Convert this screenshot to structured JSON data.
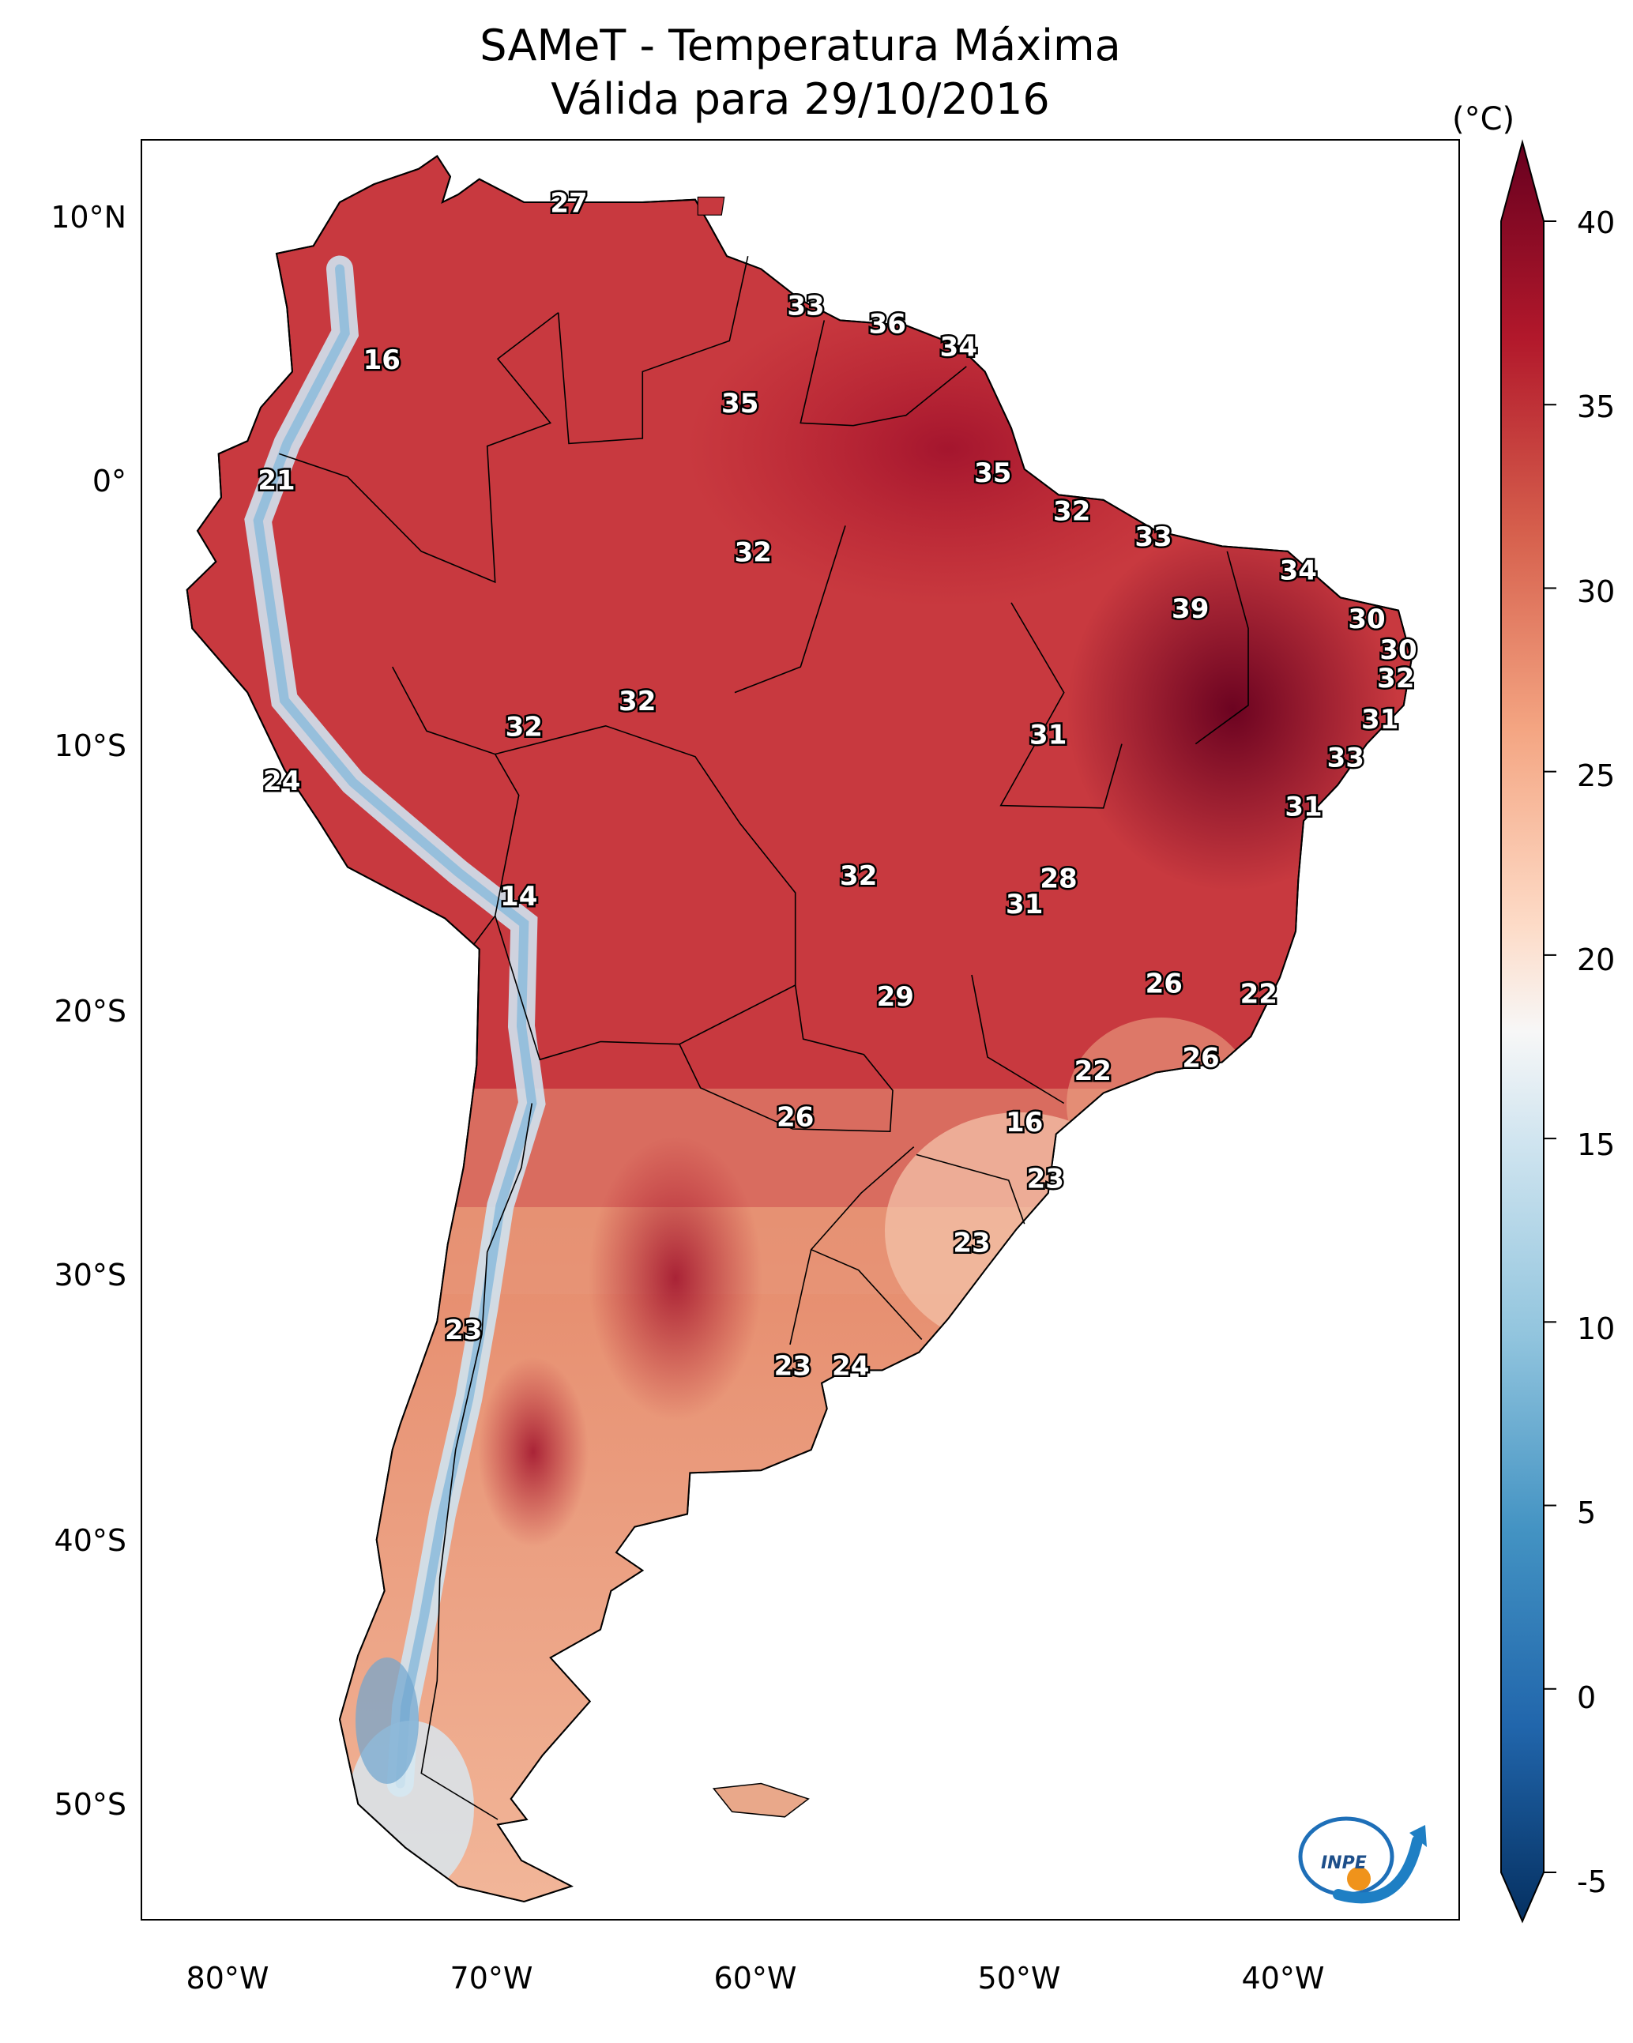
{
  "title": {
    "line1": "SAMeT - Temperatura Máxima",
    "line2": "Válida para 29/10/2016"
  },
  "colorbar": {
    "unit": "(°C)",
    "ticks": [
      "40",
      "35",
      "30",
      "25",
      "20",
      "15",
      "10",
      "5",
      "0",
      "-5"
    ],
    "range": [
      -5,
      40
    ],
    "colors": {
      "cold_extreme": "#053061",
      "cold": "#2166ac",
      "cool": "#92c5de",
      "neutral": "#f7f7f7",
      "warm": "#f4a582",
      "hot": "#d6604d",
      "hot_extreme": "#b2182b",
      "max": "#67001f"
    }
  },
  "axes": {
    "lat_labels": [
      "10°N",
      "0°",
      "10°S",
      "20°S",
      "30°S",
      "40°S",
      "50°S"
    ],
    "lon_labels": [
      "80°W",
      "70°W",
      "60°W",
      "50°W",
      "40°W"
    ]
  },
  "temperature_labels": [
    {
      "text": "27",
      "lon": -66.8,
      "lat": 10.5
    },
    {
      "text": "16",
      "lon": -73.9,
      "lat": 4.4
    },
    {
      "text": "33",
      "lon": -57.8,
      "lat": 6.5
    },
    {
      "text": "36",
      "lon": -54.7,
      "lat": 5.8
    },
    {
      "text": "34",
      "lon": -52.0,
      "lat": 4.9
    },
    {
      "text": "35",
      "lon": -60.3,
      "lat": 2.7
    },
    {
      "text": "21",
      "lon": -77.9,
      "lat": -0.3
    },
    {
      "text": "35",
      "lon": -50.7,
      "lat": 0.0
    },
    {
      "text": "32",
      "lon": -47.7,
      "lat": -1.5
    },
    {
      "text": "33",
      "lon": -44.6,
      "lat": -2.5
    },
    {
      "text": "32",
      "lon": -59.8,
      "lat": -3.1
    },
    {
      "text": "34",
      "lon": -39.1,
      "lat": -3.8
    },
    {
      "text": "39",
      "lon": -43.2,
      "lat": -5.3
    },
    {
      "text": "30",
      "lon": -36.5,
      "lat": -5.7
    },
    {
      "text": "30",
      "lon": -35.3,
      "lat": -6.9
    },
    {
      "text": "32",
      "lon": -35.4,
      "lat": -8.0
    },
    {
      "text": "32",
      "lon": -64.2,
      "lat": -8.9
    },
    {
      "text": "32",
      "lon": -68.5,
      "lat": -9.9
    },
    {
      "text": "31",
      "lon": -48.6,
      "lat": -10.2
    },
    {
      "text": "31",
      "lon": -36.0,
      "lat": -9.6
    },
    {
      "text": "33",
      "lon": -37.3,
      "lat": -11.1
    },
    {
      "text": "24",
      "lon": -77.7,
      "lat": -12.0
    },
    {
      "text": "31",
      "lon": -38.9,
      "lat": -13.0
    },
    {
      "text": "32",
      "lon": -55.8,
      "lat": -15.7
    },
    {
      "text": "28",
      "lon": -48.2,
      "lat": -15.8
    },
    {
      "text": "31",
      "lon": -49.5,
      "lat": -16.8
    },
    {
      "text": "14",
      "lon": -68.7,
      "lat": -16.5
    },
    {
      "text": "26",
      "lon": -44.2,
      "lat": -19.9
    },
    {
      "text": "22",
      "lon": -40.6,
      "lat": -20.3
    },
    {
      "text": "29",
      "lon": -54.4,
      "lat": -20.4
    },
    {
      "text": "26",
      "lon": -42.8,
      "lat": -22.8
    },
    {
      "text": "22",
      "lon": -46.9,
      "lat": -23.3
    },
    {
      "text": "26",
      "lon": -58.2,
      "lat": -25.1
    },
    {
      "text": "16",
      "lon": -49.5,
      "lat": -25.3
    },
    {
      "text": "23",
      "lon": -48.7,
      "lat": -27.5
    },
    {
      "text": "23",
      "lon": -51.5,
      "lat": -30.0
    },
    {
      "text": "23",
      "lon": -70.8,
      "lat": -33.4
    },
    {
      "text": "23",
      "lon": -58.3,
      "lat": -34.8
    },
    {
      "text": "24",
      "lon": -56.1,
      "lat": -34.8
    }
  ],
  "logo": {
    "text": "INPE"
  }
}
